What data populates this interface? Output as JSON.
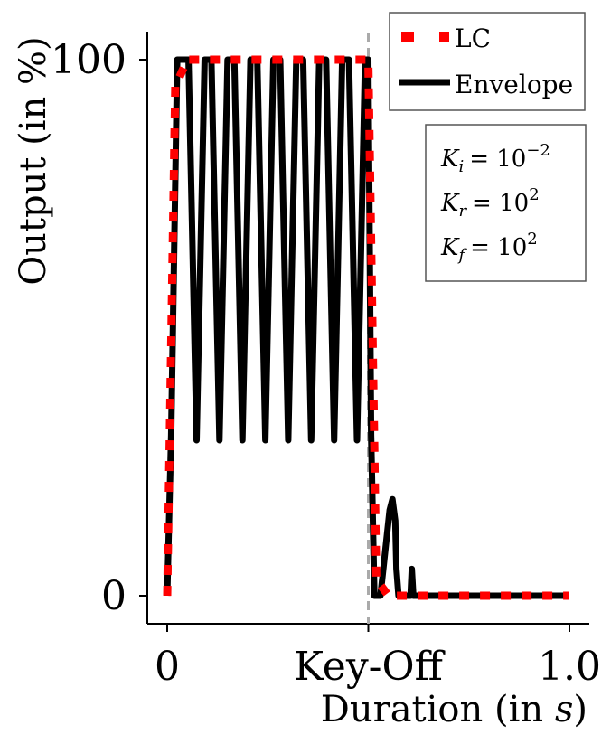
{
  "chart_data": {
    "type": "line",
    "xlabel_main": "Duration (in ",
    "xlabel_unit": "s",
    "xlabel_close": ")",
    "ylabel": "Output (in %)",
    "xlim": [
      -0.05,
      1.05
    ],
    "ylim": [
      -5,
      105
    ],
    "xticks": [
      {
        "value": 0,
        "label": "0"
      },
      {
        "value": 0.5,
        "label": "Key-Off"
      },
      {
        "value": 1.0,
        "label": "1.0"
      }
    ],
    "yticks": [
      {
        "value": 0,
        "label": "0"
      },
      {
        "value": 100,
        "label": "100"
      }
    ],
    "keyoff_x": 0.5,
    "series": [
      {
        "name": "LC",
        "style": "dotted",
        "color": "#ff0000",
        "x": [
          0.0,
          0.02,
          0.05,
          0.1,
          0.2,
          0.3,
          0.4,
          0.48,
          0.5,
          0.52,
          0.55,
          0.6,
          0.7,
          0.8,
          0.9,
          1.0
        ],
        "y": [
          0,
          95,
          100,
          100,
          100,
          100,
          100,
          100,
          100,
          3,
          0,
          0,
          0,
          0,
          0,
          0
        ]
      },
      {
        "name": "Envelope",
        "style": "solid",
        "color": "#000000",
        "x": [
          0.0,
          0.01,
          0.025,
          0.053,
          0.073,
          0.093,
          0.11,
          0.13,
          0.15,
          0.167,
          0.187,
          0.207,
          0.224,
          0.244,
          0.264,
          0.281,
          0.301,
          0.321,
          0.338,
          0.358,
          0.378,
          0.395,
          0.415,
          0.435,
          0.452,
          0.472,
          0.492,
          0.5,
          0.507,
          0.515,
          0.53,
          0.553,
          0.56,
          0.567,
          0.57,
          0.575,
          0.58,
          0.605,
          0.608,
          0.612,
          0.617,
          1.0
        ],
        "y": [
          0,
          30,
          100,
          100,
          29,
          100,
          100,
          29,
          100,
          100,
          29,
          100,
          100,
          29,
          100,
          100,
          29,
          100,
          100,
          29,
          100,
          100,
          29,
          100,
          100,
          29,
          100,
          100,
          30,
          0,
          0,
          16,
          18,
          14,
          5,
          0,
          0,
          0,
          5,
          0,
          0,
          0
        ]
      }
    ],
    "legend": {
      "position": "top-right",
      "entries": [
        "LC",
        "Envelope"
      ]
    },
    "params": [
      {
        "sym": "K",
        "sub": "i",
        "base": "= 10",
        "exp": "−2"
      },
      {
        "sym": "K",
        "sub": "r",
        "base": "= 10",
        "exp": "2"
      },
      {
        "sym": "K",
        "sub": "f",
        "base": "= 10",
        "exp": "2"
      }
    ],
    "grid": false
  }
}
